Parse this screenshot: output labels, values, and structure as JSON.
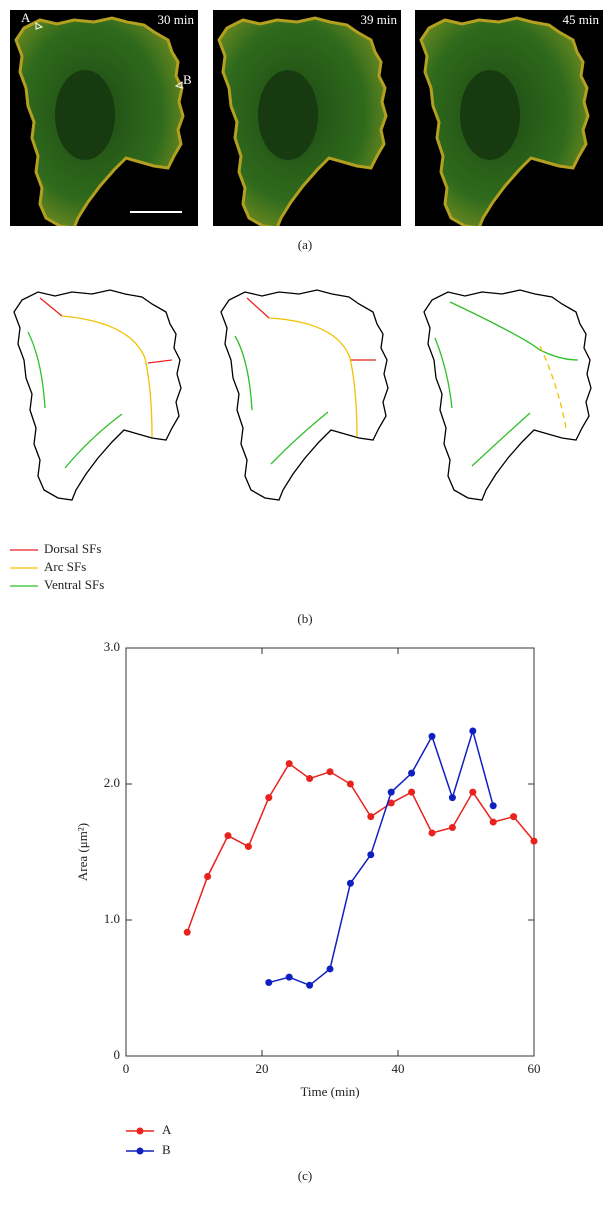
{
  "panel_a": {
    "time_labels": [
      "30 min",
      "39 min",
      "45 min"
    ],
    "markers": [
      "A",
      "B"
    ],
    "caption": "(a)"
  },
  "panel_b": {
    "legend": [
      {
        "name": "Dorsal SFs",
        "color": "#e8231e"
      },
      {
        "name": "Arc SFs",
        "color": "#f2c200"
      },
      {
        "name": "Ventral SFs",
        "color": "#2fbf2a"
      }
    ],
    "caption": "(b)"
  },
  "chart_data": {
    "type": "line",
    "x_label": "Time (min)",
    "y_label": "Area (μm²)",
    "series": [
      {
        "name": "A",
        "color": "#e8231e",
        "x": [
          9,
          12,
          15,
          18,
          21,
          24,
          27,
          30,
          33,
          36,
          39,
          42,
          45,
          48,
          51,
          54,
          57,
          60
        ],
        "values": [
          0.91,
          1.32,
          1.62,
          1.54,
          1.9,
          2.15,
          2.04,
          2.09,
          2.0,
          1.76,
          1.86,
          1.94,
          1.64,
          1.68,
          1.94,
          1.72,
          1.76,
          1.58
        ]
      },
      {
        "name": "B",
        "color": "#1020c0",
        "x": [
          21,
          24,
          27,
          30,
          33,
          36,
          39,
          42,
          45,
          48,
          51,
          54
        ],
        "values": [
          0.54,
          0.58,
          0.52,
          0.64,
          1.27,
          1.48,
          1.94,
          2.08,
          2.35,
          1.9,
          2.39,
          1.84
        ]
      }
    ],
    "xlim": [
      0,
      60
    ],
    "xticks": [
      0,
      20,
      40,
      60
    ],
    "ylim": [
      0,
      3
    ],
    "yticks": [
      0,
      {
        "value": 1,
        "label": "1.0"
      },
      {
        "value": 2,
        "label": "2.0"
      },
      {
        "value": 3,
        "label": "3.0"
      }
    ],
    "caption": "(c)"
  }
}
